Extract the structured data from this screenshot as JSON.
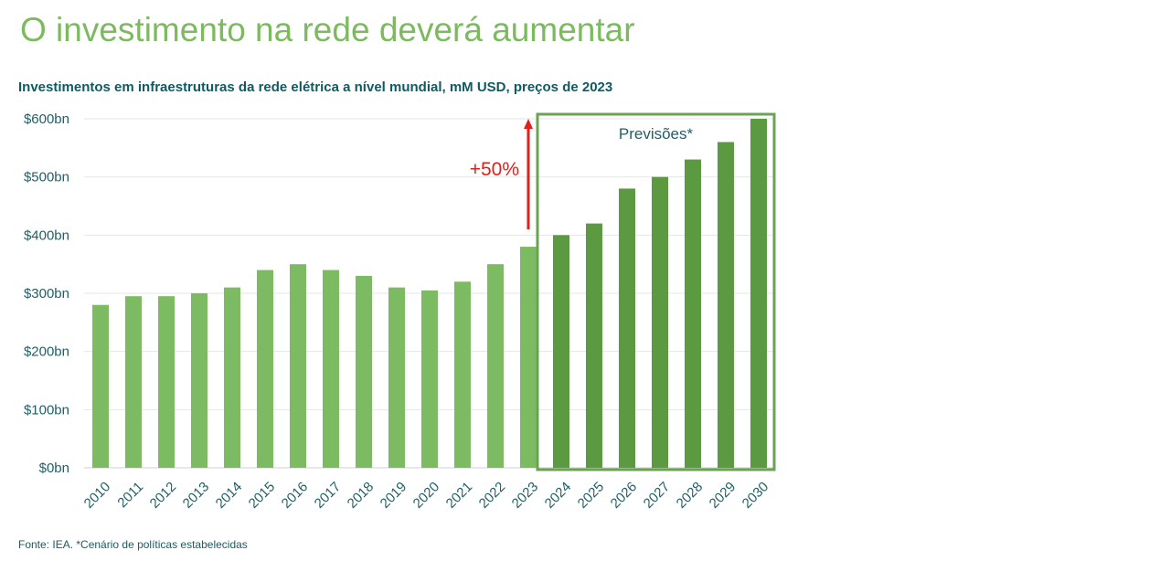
{
  "page": {
    "title": "O investimento na rede deverá aumentar",
    "source": "Fonte: IEA. *Cenário de políticas estabelecidas"
  },
  "colors": {
    "historical_bar": "#7dbb62",
    "forecast_bar": "#5c9a42",
    "forecast_box": "#6aa453",
    "arrow": "#e0201b",
    "gridline": "#e6e6e6"
  },
  "chart_data": {
    "type": "bar",
    "title": "Investimentos em infraestruturas da rede elétrica a nível mundial, mM USD, preços de 2023",
    "xlabel": "",
    "ylabel": "",
    "ylim": [
      0,
      600
    ],
    "grid": true,
    "y_ticks": [
      0,
      100,
      200,
      300,
      400,
      500,
      600
    ],
    "y_tick_labels": [
      "$0bn",
      "$100bn",
      "$200bn",
      "$300bn",
      "$400bn",
      "$500bn",
      "$600bn"
    ],
    "categories": [
      "2010",
      "2011",
      "2012",
      "2013",
      "2014",
      "2015",
      "2016",
      "2017",
      "2018",
      "2019",
      "2020",
      "2021",
      "2022",
      "2023",
      "2024",
      "2025",
      "2026",
      "2027",
      "2028",
      "2029",
      "2030"
    ],
    "values": [
      280,
      295,
      295,
      300,
      310,
      340,
      350,
      340,
      330,
      310,
      305,
      320,
      350,
      380,
      400,
      420,
      480,
      500,
      530,
      560,
      600
    ],
    "forecast_start_index": 14,
    "annotations": {
      "growth_label": "+50%",
      "forecast_label": "Previsões*"
    }
  }
}
